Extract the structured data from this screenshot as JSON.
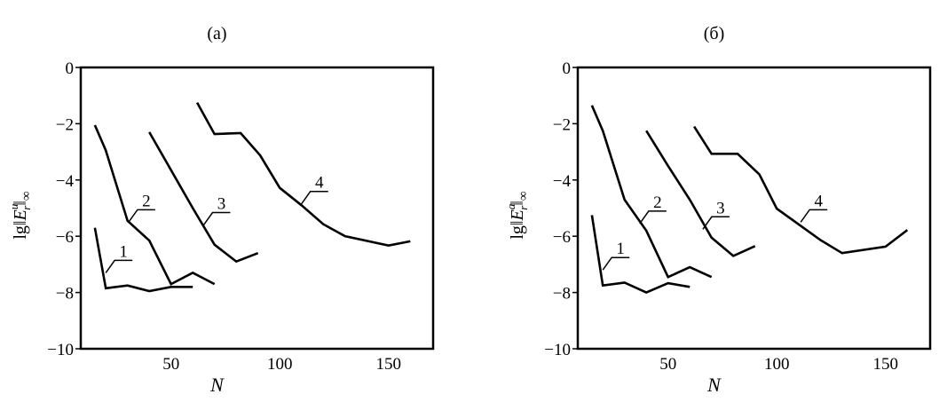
{
  "chart_data": [
    {
      "type": "line",
      "title": "(а)",
      "xlabel": "N",
      "ylabel_parts": {
        "prefix": "lg",
        "norm_open": "‖",
        "symbol": "E",
        "sub": "r",
        "sup": "u",
        "norm_close": "‖",
        "norm_sub": "∞"
      },
      "xlim": [
        8.5,
        170.5
      ],
      "ylim": [
        -10,
        0
      ],
      "xticks": [
        50,
        100,
        150
      ],
      "yticks": [
        0,
        -2,
        -4,
        -6,
        -8,
        -10
      ],
      "ytick_labels": [
        "0",
        "−2",
        "−4",
        "−6",
        "−8",
        "−10"
      ],
      "xtick_labels": [
        "50",
        "100",
        "150"
      ],
      "grid": false,
      "series": [
        {
          "name": "1",
          "x": [
            15,
            20,
            30,
            40,
            50,
            60
          ],
          "y": [
            -5.7,
            -7.85,
            -7.75,
            -7.95,
            -7.8,
            -7.8
          ]
        },
        {
          "name": "2",
          "x": [
            15,
            20,
            30,
            40,
            50,
            60,
            70
          ],
          "y": [
            -2.05,
            -2.95,
            -5.45,
            -6.15,
            -7.7,
            -7.3,
            -7.7
          ]
        },
        {
          "name": "3",
          "x": [
            40,
            50,
            60,
            70,
            80,
            90
          ],
          "y": [
            -2.3,
            -3.65,
            -5.0,
            -6.3,
            -6.9,
            -6.6
          ]
        },
        {
          "name": "4",
          "x": [
            62,
            70,
            82,
            91,
            100,
            110,
            120,
            130,
            150,
            160
          ],
          "y": [
            -1.25,
            -2.37,
            -2.33,
            -3.13,
            -4.28,
            -4.9,
            -5.57,
            -6.0,
            -6.33,
            -6.18
          ]
        }
      ],
      "annotations": [
        {
          "text": "1",
          "series": "1",
          "at_x": 20,
          "at_y": -7.3
        },
        {
          "text": "2",
          "series": "2",
          "at_x": 30.5,
          "at_y": -5.5
        },
        {
          "text": "3",
          "series": "3",
          "at_x": 65,
          "at_y": -5.6
        },
        {
          "text": "4",
          "series": "4",
          "at_x": 110,
          "at_y": -4.85
        }
      ]
    },
    {
      "type": "line",
      "title": "(б)",
      "xlabel": "N",
      "ylabel_parts": {
        "prefix": "lg",
        "norm_open": "‖",
        "symbol": "E",
        "sub": "r",
        "sup": "a",
        "norm_close": "‖",
        "norm_sub": "∞"
      },
      "xlim": [
        8.5,
        170.5
      ],
      "ylim": [
        -10,
        0
      ],
      "xticks": [
        50,
        100,
        150
      ],
      "yticks": [
        0,
        -2,
        -4,
        -6,
        -8,
        -10
      ],
      "ytick_labels": [
        "0",
        "−2",
        "−4",
        "−6",
        "−8",
        "−10"
      ],
      "xtick_labels": [
        "50",
        "100",
        "150"
      ],
      "grid": false,
      "series": [
        {
          "name": "1",
          "x": [
            15,
            20,
            30,
            40,
            50,
            60
          ],
          "y": [
            -5.25,
            -7.75,
            -7.65,
            -8.0,
            -7.67,
            -7.8
          ]
        },
        {
          "name": "2",
          "x": [
            15,
            20,
            30,
            40,
            50,
            60,
            70
          ],
          "y": [
            -1.35,
            -2.25,
            -4.7,
            -5.8,
            -7.45,
            -7.1,
            -7.45
          ]
        },
        {
          "name": "3",
          "x": [
            40,
            50,
            60,
            70,
            80,
            90
          ],
          "y": [
            -2.25,
            -3.5,
            -4.7,
            -6.05,
            -6.7,
            -6.35
          ]
        },
        {
          "name": "4",
          "x": [
            62,
            70,
            82,
            92,
            100,
            120,
            130,
            150,
            160
          ],
          "y": [
            -2.1,
            -3.07,
            -3.07,
            -3.8,
            -5.02,
            -6.13,
            -6.6,
            -6.37,
            -5.78
          ]
        }
      ],
      "annotations": [
        {
          "text": "1",
          "series": "1",
          "at_x": 20,
          "at_y": -7.2
        },
        {
          "text": "2",
          "series": "2",
          "at_x": 37,
          "at_y": -5.55
        },
        {
          "text": "3",
          "series": "3",
          "at_x": 66,
          "at_y": -5.75
        },
        {
          "text": "4",
          "series": "4",
          "at_x": 111,
          "at_y": -5.5
        }
      ]
    }
  ]
}
